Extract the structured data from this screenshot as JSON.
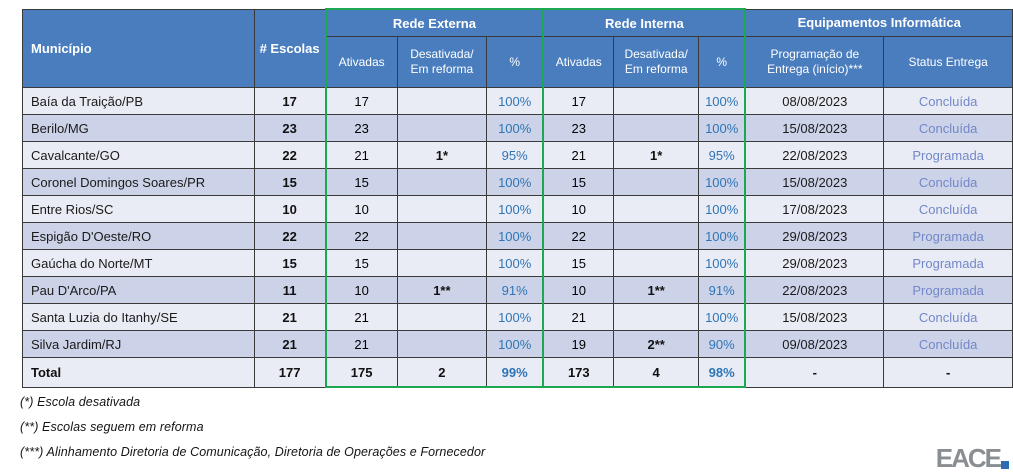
{
  "table": {
    "columns": {
      "municipio": "Município",
      "escolas": "# Escolas",
      "groups": {
        "rede_externa": "Rede Externa",
        "rede_interna": "Rede Interna",
        "equipamentos": "Equipamentos Informática"
      },
      "sub": {
        "ativadas": "Ativadas",
        "desativada": "Desativada/ Em reforma",
        "pct": "%",
        "programacao": "Programação de Entrega (início)***",
        "status": "Status Entrega"
      }
    },
    "rows": [
      {
        "municipio": "Baía da Traição/PB",
        "escolas": "17",
        "re_ativadas": "17",
        "re_desativada": "",
        "re_pct": "100%",
        "ri_ativadas": "17",
        "ri_desativada": "",
        "ri_pct": "100%",
        "entrega": "08/08/2023",
        "status": "Concluída"
      },
      {
        "municipio": "Berilo/MG",
        "escolas": "23",
        "re_ativadas": "23",
        "re_desativada": "",
        "re_pct": "100%",
        "ri_ativadas": "23",
        "ri_desativada": "",
        "ri_pct": "100%",
        "entrega": "15/08/2023",
        "status": "Concluída"
      },
      {
        "municipio": "Cavalcante/GO",
        "escolas": "22",
        "re_ativadas": "21",
        "re_desativada": "1*",
        "re_pct": "95%",
        "ri_ativadas": "21",
        "ri_desativada": "1*",
        "ri_pct": "95%",
        "entrega": "22/08/2023",
        "status": "Programada"
      },
      {
        "municipio": "Coronel Domingos Soares/PR",
        "escolas": "15",
        "re_ativadas": "15",
        "re_desativada": "",
        "re_pct": "100%",
        "ri_ativadas": "15",
        "ri_desativada": "",
        "ri_pct": "100%",
        "entrega": "15/08/2023",
        "status": "Concluída"
      },
      {
        "municipio": "Entre Rios/SC",
        "escolas": "10",
        "re_ativadas": "10",
        "re_desativada": "",
        "re_pct": "100%",
        "ri_ativadas": "10",
        "ri_desativada": "",
        "ri_pct": "100%",
        "entrega": "17/08/2023",
        "status": "Concluída"
      },
      {
        "municipio": "Espigão D'Oeste/RO",
        "escolas": "22",
        "re_ativadas": "22",
        "re_desativada": "",
        "re_pct": "100%",
        "ri_ativadas": "22",
        "ri_desativada": "",
        "ri_pct": "100%",
        "entrega": "29/08/2023",
        "status": "Programada"
      },
      {
        "municipio": "Gaúcha do Norte/MT",
        "escolas": "15",
        "re_ativadas": "15",
        "re_desativada": "",
        "re_pct": "100%",
        "ri_ativadas": "15",
        "ri_desativada": "",
        "ri_pct": "100%",
        "entrega": "29/08/2023",
        "status": "Programada"
      },
      {
        "municipio": "Pau D'Arco/PA",
        "escolas": "11",
        "re_ativadas": "10",
        "re_desativada": "1**",
        "re_pct": "91%",
        "ri_ativadas": "10",
        "ri_desativada": "1**",
        "ri_pct": "91%",
        "entrega": "22/08/2023",
        "status": "Programada"
      },
      {
        "municipio": "Santa Luzia do Itanhy/SE",
        "escolas": "21",
        "re_ativadas": "21",
        "re_desativada": "",
        "re_pct": "100%",
        "ri_ativadas": "21",
        "ri_desativada": "",
        "ri_pct": "100%",
        "entrega": "15/08/2023",
        "status": "Concluída"
      },
      {
        "municipio": "Silva Jardim/RJ",
        "escolas": "21",
        "re_ativadas": "21",
        "re_desativada": "",
        "re_pct": "100%",
        "ri_ativadas": "19",
        "ri_desativada": "2**",
        "ri_pct": "90%",
        "entrega": "09/08/2023",
        "status": "Concluída"
      }
    ],
    "total": {
      "municipio": "Total",
      "escolas": "177",
      "re_ativadas": "175",
      "re_desativada": "2",
      "re_pct": "99%",
      "ri_ativadas": "173",
      "ri_desativada": "4",
      "ri_pct": "98%",
      "entrega": "-",
      "status": "-"
    }
  },
  "footnotes": [
    "(*) Escola desativada",
    "(**) Escolas seguem em reforma",
    "(***) Alinhamento Diretoria de Comunicação, Diretoria de Operações e Fornecedor"
  ],
  "logo": {
    "text": "EACE"
  },
  "colors": {
    "header_blue": "#4A7DBE",
    "row_light": "#EAECF5",
    "row_dark": "#CCD3E8",
    "pct_blue": "#2E75B6",
    "status_blue": "#7287C9",
    "group_green": "#1CA853"
  }
}
